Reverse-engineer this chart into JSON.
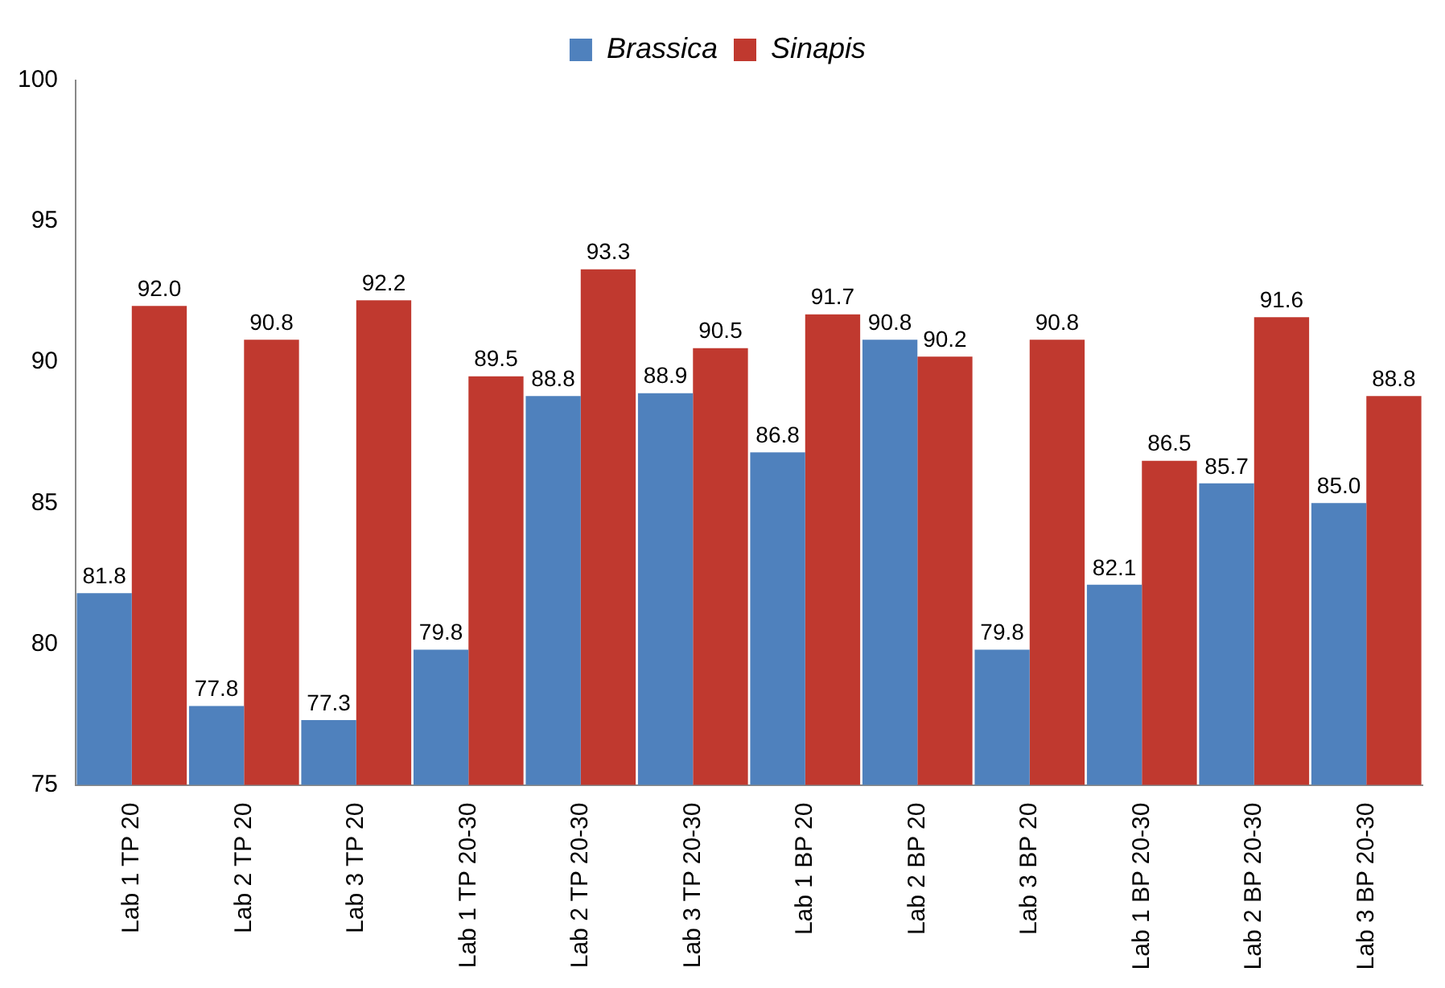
{
  "chart_data": {
    "type": "bar",
    "categories": [
      "Lab 1 TP 20",
      "Lab 2 TP 20",
      "Lab 3 TP 20",
      "Lab 1 TP 20-30",
      "Lab 2 TP 20-30",
      "Lab 3 TP 20-30",
      "Lab 1 BP 20",
      "Lab 2 BP 20",
      "Lab 3 BP 20",
      "Lab 1 BP 20-30",
      "Lab 2 BP 20-30",
      "Lab 3 BP 20-30"
    ],
    "series": [
      {
        "name": "Brassica",
        "color": "#4f81bd",
        "values": [
          81.8,
          77.8,
          77.3,
          79.8,
          88.8,
          88.9,
          86.8,
          90.8,
          79.8,
          82.1,
          85.7,
          85.0
        ],
        "value_labels": [
          "81.8",
          "77.8",
          "77.3",
          "79.8",
          "88.8",
          "88.9",
          "86.8",
          "90.8",
          "79.8",
          "82.1",
          "85.7",
          "85.0"
        ]
      },
      {
        "name": "Sinapis",
        "color": "#c0392f",
        "values": [
          92.0,
          90.8,
          92.2,
          89.5,
          93.3,
          90.5,
          91.7,
          90.2,
          90.8,
          86.5,
          91.6,
          88.8
        ],
        "value_labels": [
          "92.0",
          "90.8",
          "92.2",
          "89.5",
          "93.3",
          "90.5",
          "91.7",
          "90.2",
          "90.8",
          "86.5",
          "91.6",
          "88.8"
        ]
      }
    ],
    "ylim": [
      75,
      100
    ],
    "yticks": [
      75,
      80,
      85,
      90,
      95,
      100
    ],
    "grid": false,
    "legend": "top"
  }
}
